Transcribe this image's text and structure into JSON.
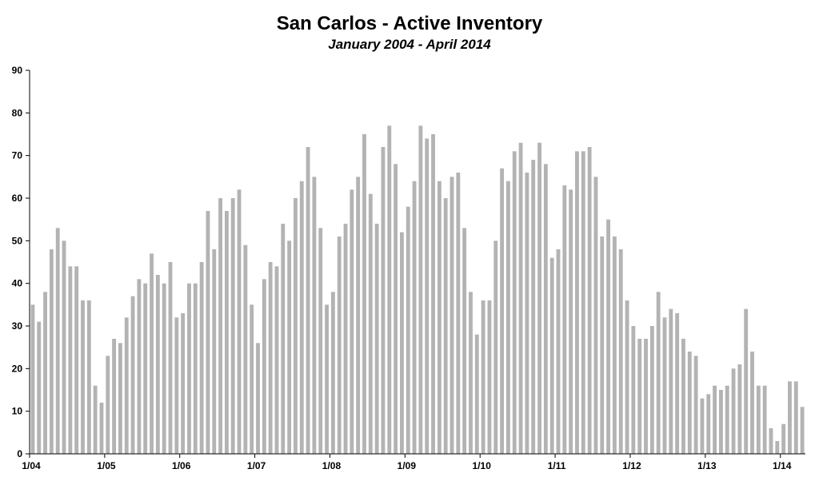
{
  "chart_data": {
    "type": "bar",
    "title": "San Carlos - Active Inventory",
    "subtitle": "January 2004 - April 2014",
    "xlabel": "",
    "ylabel": "",
    "ylim": [
      0,
      90
    ],
    "yticks": [
      0,
      10,
      20,
      30,
      40,
      50,
      60,
      70,
      80,
      90
    ],
    "xtick_labels": [
      {
        "label": "1/04",
        "index": 0
      },
      {
        "label": "1/05",
        "index": 12
      },
      {
        "label": "1/06",
        "index": 24
      },
      {
        "label": "1/07",
        "index": 36
      },
      {
        "label": "1/08",
        "index": 48
      },
      {
        "label": "1/09",
        "index": 60
      },
      {
        "label": "1/10",
        "index": 72
      },
      {
        "label": "1/11",
        "index": 84
      },
      {
        "label": "1/12",
        "index": 96
      },
      {
        "label": "1/13",
        "index": 108
      },
      {
        "label": "1/14",
        "index": 120
      }
    ],
    "grid": false,
    "legend": "none",
    "bar_color": "#b3b3b3",
    "values": [
      35,
      31,
      38,
      48,
      53,
      50,
      44,
      44,
      36,
      36,
      16,
      12,
      23,
      27,
      26,
      32,
      37,
      41,
      40,
      47,
      42,
      40,
      45,
      32,
      33,
      40,
      40,
      45,
      57,
      48,
      60,
      57,
      60,
      62,
      49,
      35,
      26,
      41,
      45,
      44,
      54,
      50,
      60,
      64,
      72,
      65,
      53,
      35,
      38,
      51,
      54,
      62,
      65,
      75,
      61,
      54,
      72,
      77,
      68,
      52,
      58,
      64,
      77,
      74,
      75,
      64,
      60,
      65,
      66,
      53,
      38,
      28,
      36,
      36,
      50,
      67,
      64,
      71,
      73,
      66,
      69,
      73,
      68,
      46,
      48,
      63,
      62,
      71,
      71,
      72,
      65,
      51,
      55,
      51,
      48,
      36,
      30,
      27,
      27,
      30,
      38,
      32,
      34,
      33,
      27,
      24,
      23,
      13,
      14,
      16,
      15,
      16,
      20,
      21,
      34,
      24,
      16,
      16,
      6,
      3,
      7,
      17,
      17,
      11
    ]
  }
}
